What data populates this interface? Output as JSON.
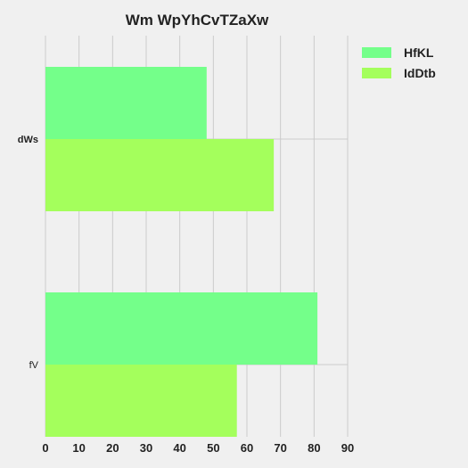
{
  "chart_data": {
    "type": "bar",
    "orientation": "horizontal",
    "title": "Wm WpYhCvTZaXw",
    "xlabel": "",
    "ylabel": "",
    "categories": [
      "dWs",
      "fV"
    ],
    "series": [
      {
        "name": "HfKL",
        "values": [
          48,
          81
        ],
        "color": "#74ff8a"
      },
      {
        "name": "IdDtb",
        "values": [
          68,
          57
        ],
        "color": "#a4ff5c"
      }
    ],
    "xlim": [
      0,
      90
    ],
    "xticks": [
      0,
      10,
      20,
      30,
      40,
      50,
      60,
      70,
      80,
      90
    ],
    "grid": true,
    "legend_position": "top-right"
  },
  "colors": {
    "background": "#f0f0f0",
    "grid": "#cbcbcb"
  }
}
